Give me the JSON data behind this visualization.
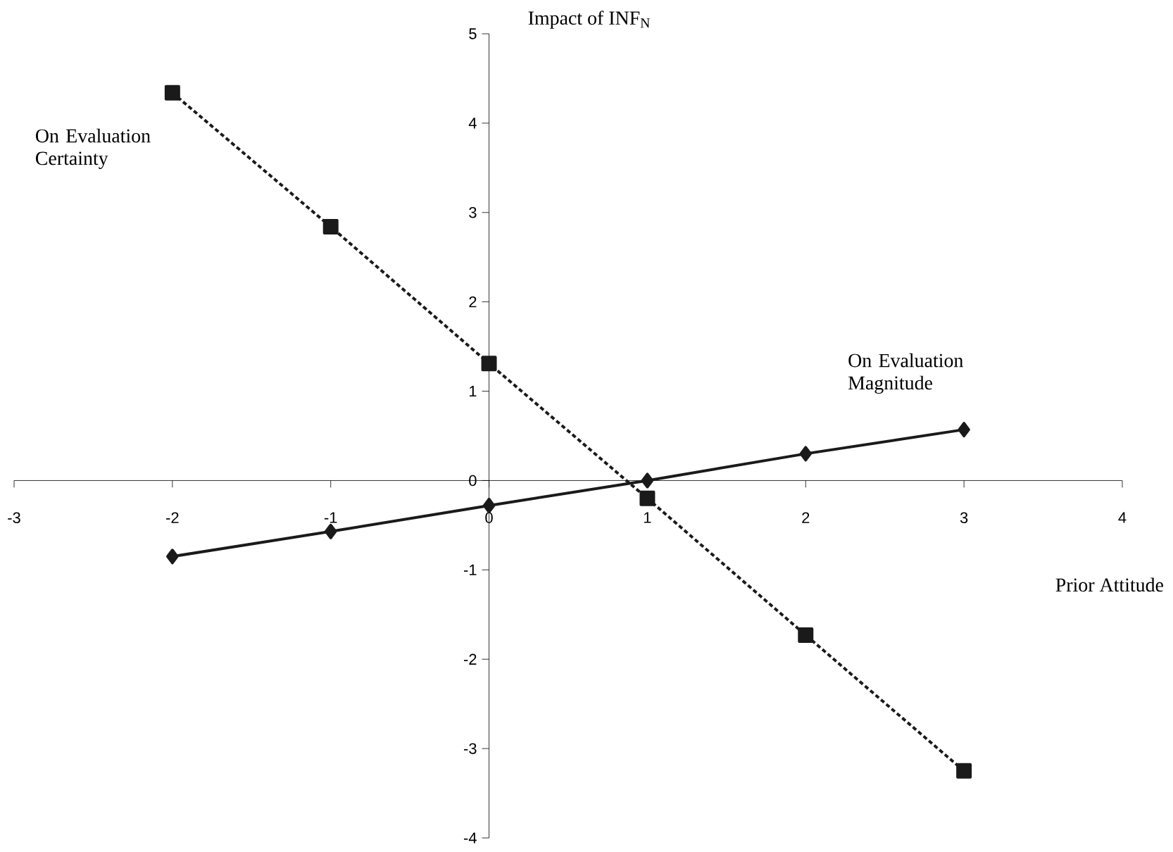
{
  "chart_data": {
    "type": "line",
    "xlabel": "Prior Attitude",
    "ylabel": "Impact of INF$_{N}$",
    "x": [
      -2,
      -1,
      0,
      1,
      2,
      3
    ],
    "series": [
      {
        "name": "On Evaluation Certainty",
        "color": "#1a1a1a",
        "marker": "square",
        "line_style": "dotted",
        "values": [
          4.34,
          2.84,
          1.31,
          -0.2,
          -1.73,
          -3.25
        ]
      },
      {
        "name": "On Evaluation Magnitude",
        "color": "#1a1a1a",
        "marker": "diamond",
        "line_style": "solid",
        "values": [
          -0.85,
          -0.57,
          -0.28,
          0,
          0.3,
          0.57
        ]
      }
    ],
    "xlim": [
      -3,
      4
    ],
    "ylim": [
      -4,
      5
    ],
    "xticks": [
      -3,
      -2,
      -1,
      0,
      1,
      2,
      3,
      4
    ],
    "yticks": [
      -4,
      -3,
      -2,
      -1,
      0,
      1,
      2,
      3,
      4,
      5
    ],
    "grid": false,
    "legend": false
  }
}
